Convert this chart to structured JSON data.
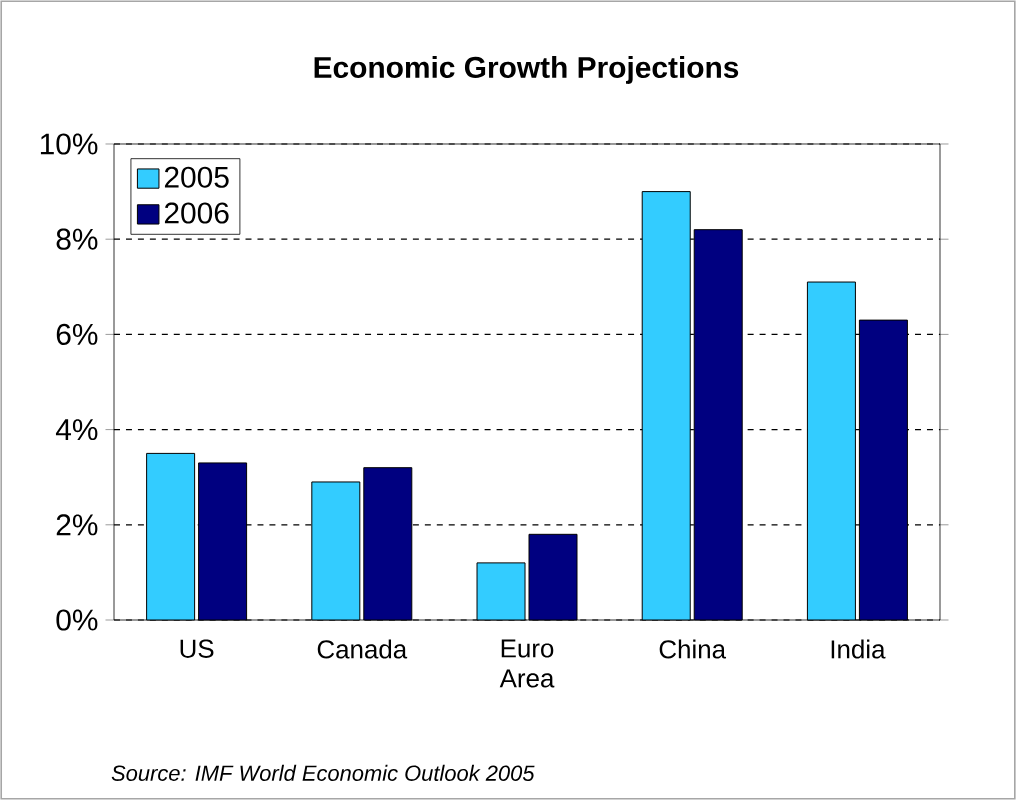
{
  "chart_data": {
    "type": "bar",
    "title": "Economic Growth Projections",
    "categories": [
      "US",
      "Canada",
      "Euro Area",
      "China",
      "India"
    ],
    "series": [
      {
        "name": "2005",
        "color": "#33ccff",
        "values": [
          3.5,
          2.9,
          1.2,
          9.0,
          7.1
        ]
      },
      {
        "name": "2006",
        "color": "#000080",
        "values": [
          3.3,
          3.2,
          1.8,
          8.2,
          6.3
        ]
      }
    ],
    "ylim": [
      0,
      10
    ],
    "yticks": [
      {
        "value": 0,
        "label": "0%"
      },
      {
        "value": 2,
        "label": "2%"
      },
      {
        "value": 4,
        "label": "4%"
      },
      {
        "value": 6,
        "label": "6%"
      },
      {
        "value": 8,
        "label": "8%"
      },
      {
        "value": 10,
        "label": "10%"
      }
    ],
    "grid": "y",
    "legend": "top left",
    "annotations": [
      "Source: IMF World Economic Outlook 2005"
    ]
  }
}
